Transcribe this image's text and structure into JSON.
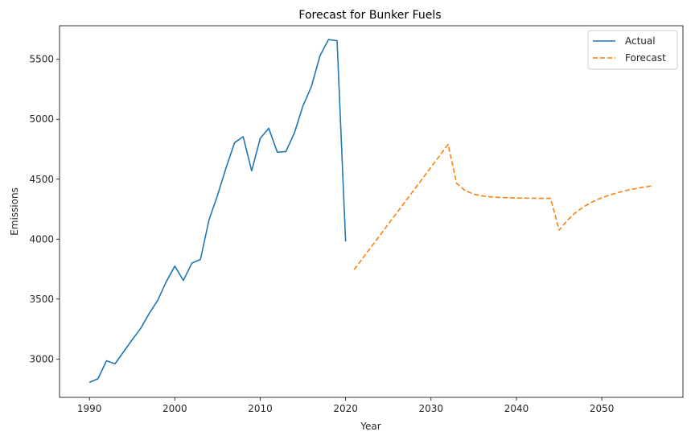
{
  "chart_data": {
    "type": "line",
    "title": "Forecast for Bunker Fuels",
    "xlabel": "Year",
    "ylabel": "Emissions",
    "xlim": [
      1986.5,
      2059.5
    ],
    "ylim": [
      2680,
      5780
    ],
    "xticks": [
      1990,
      2000,
      2010,
      2020,
      2030,
      2040,
      2050
    ],
    "yticks": [
      3000,
      3500,
      4000,
      4500,
      5000,
      5500
    ],
    "grid": false,
    "legend_position": "top-right",
    "series": [
      {
        "name": "Actual",
        "color": "#1f77b4",
        "style": "solid",
        "x": [
          1990,
          1991,
          1992,
          1993,
          1994,
          1995,
          1996,
          1997,
          1998,
          1999,
          2000,
          2001,
          2002,
          2003,
          2004,
          2005,
          2006,
          2007,
          2008,
          2009,
          2010,
          2011,
          2012,
          2013,
          2014,
          2015,
          2016,
          2017,
          2018,
          2019,
          2020
        ],
        "y": [
          2805,
          2835,
          2985,
          2960,
          3060,
          3160,
          3255,
          3380,
          3490,
          3645,
          3775,
          3655,
          3800,
          3830,
          4160,
          4365,
          4595,
          4805,
          4855,
          4570,
          4840,
          4925,
          4725,
          4730,
          4885,
          5110,
          5275,
          5530,
          5665,
          5655,
          3980
        ]
      },
      {
        "name": "Forecast",
        "color": "#ff7f0e",
        "style": "dashed",
        "x": [
          2021,
          2022,
          2023,
          2024,
          2025,
          2026,
          2027,
          2028,
          2029,
          2030,
          2031,
          2032,
          2033,
          2034,
          2035,
          2036,
          2037,
          2038,
          2039,
          2040,
          2041,
          2042,
          2043,
          2044,
          2045,
          2046,
          2047,
          2048,
          2049,
          2050,
          2051,
          2052,
          2053,
          2054,
          2055,
          2056
        ],
        "y": [
          3745,
          3840,
          3935,
          4030,
          4125,
          4220,
          4315,
          4410,
          4505,
          4600,
          4695,
          4790,
          4465,
          4405,
          4375,
          4360,
          4352,
          4348,
          4345,
          4343,
          4342,
          4341,
          4340,
          4340,
          4075,
          4160,
          4225,
          4275,
          4315,
          4345,
          4370,
          4390,
          4408,
          4422,
          4435,
          4445
        ]
      }
    ]
  }
}
